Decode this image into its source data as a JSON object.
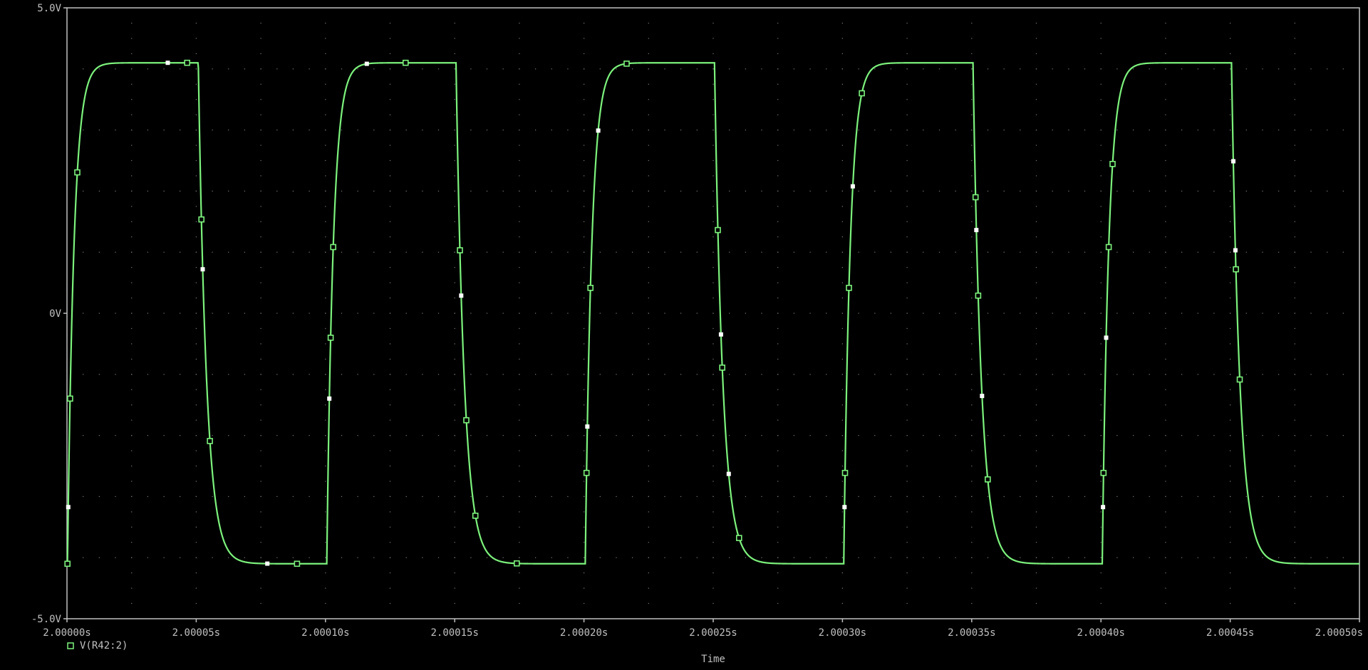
{
  "colors": {
    "background": "#000000",
    "axis": "#c0c0c0",
    "grid_dot": "#7a7a7a",
    "trace": "#7cf27c",
    "marker_white": "#ffffff"
  },
  "chart_data": {
    "type": "line",
    "title": "",
    "xlabel": "Time",
    "ylabel": "",
    "xlim": [
      2.0,
      2.0005
    ],
    "ylim": [
      -5.0,
      5.0
    ],
    "xticks": [
      2.0,
      2.00005,
      2.0001,
      2.00015,
      2.0002,
      2.00025,
      2.0003,
      2.00035,
      2.0004,
      2.00045,
      2.0005
    ],
    "xtick_labels": [
      "2.00000s",
      "2.00005s",
      "2.00010s",
      "2.00015s",
      "2.00020s",
      "2.00025s",
      "2.00030s",
      "2.00035s",
      "2.00040s",
      "2.00045s",
      "2.00050s"
    ],
    "yticks": [
      5.0,
      0.0,
      -5.0
    ],
    "ytick_labels": [
      "5.0V",
      "0V",
      "-5.0V"
    ],
    "grid": "dotted",
    "legend_position": "bottom-left",
    "series": [
      {
        "name": "V(R42:2)",
        "marker": "hollow-square",
        "rise_tau_s": 2.5e-06,
        "fall_tau_s": 3.2e-06,
        "high_level_v": 4.1,
        "low_level_v": -4.1,
        "transitions": [
          {
            "t": 2.0000002,
            "dir": "rise"
          },
          {
            "t": 2.0000508,
            "dir": "fall"
          },
          {
            "t": 2.0001005,
            "dir": "rise"
          },
          {
            "t": 2.0001505,
            "dir": "fall"
          },
          {
            "t": 2.0002005,
            "dir": "rise"
          },
          {
            "t": 2.0002505,
            "dir": "fall"
          },
          {
            "t": 2.0003005,
            "dir": "rise"
          },
          {
            "t": 2.0003505,
            "dir": "fall"
          },
          {
            "t": 2.0004005,
            "dir": "rise"
          },
          {
            "t": 2.0004505,
            "dir": "fall"
          }
        ],
        "green_markers_t": [
          2.0000002,
          2.0000012,
          2.000004,
          2.0000465,
          2.000052,
          2.0000553,
          2.000089,
          2.000102,
          2.000103,
          2.000131,
          2.000152,
          2.0001545,
          2.000158,
          2.000174,
          2.000201,
          2.0002025,
          2.0002165,
          2.0002518,
          2.0002535,
          2.00026,
          2.000301,
          2.0003025,
          2.0003075,
          2.0003515,
          2.0003525,
          2.0003562,
          2.000401,
          2.000403,
          2.0004045,
          2.0004522,
          2.0004537
        ],
        "white_markers_t": [
          2.0000005,
          2.000039,
          2.0000525,
          2.0000775,
          2.0001015,
          2.000116,
          2.0001525,
          2.0002013,
          2.0002055,
          2.000253,
          2.000256,
          2.0003008,
          2.000304,
          2.0003518,
          2.000354,
          2.0004008,
          2.000402,
          2.0004512,
          2.000452
        ]
      }
    ]
  }
}
